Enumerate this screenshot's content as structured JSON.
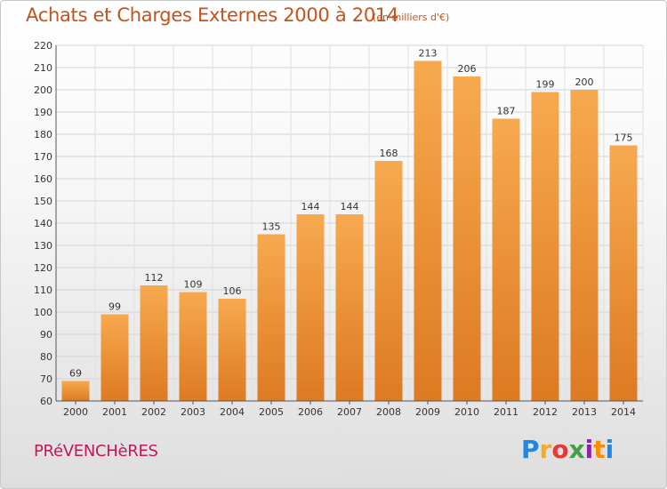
{
  "header": {
    "title": "Achats et Charges Externes 2000 à 2014",
    "subtitle": "(en milliers d'€)"
  },
  "footer": {
    "commune": "PRéVENCHèRES",
    "logo": [
      "P",
      "r",
      "o",
      "x",
      "i",
      "t",
      "i"
    ]
  },
  "colors": {
    "bar_top": "#f7a94f",
    "bar_bottom": "#dd7a22",
    "title": "#c8521a",
    "commune": "#c1185b"
  },
  "chart_data": {
    "type": "bar",
    "title": "Achats et Charges Externes 2000 à 2014",
    "subtitle": "(en milliers d'€)",
    "categories": [
      "2000",
      "2001",
      "2002",
      "2003",
      "2004",
      "2005",
      "2006",
      "2007",
      "2008",
      "2009",
      "2010",
      "2011",
      "2012",
      "2013",
      "2014"
    ],
    "values": [
      69,
      99,
      112,
      109,
      106,
      135,
      144,
      144,
      168,
      213,
      206,
      187,
      199,
      200,
      175
    ],
    "ylim": [
      60,
      220
    ],
    "yticks": [
      60,
      70,
      80,
      90,
      100,
      110,
      120,
      130,
      140,
      150,
      160,
      170,
      180,
      190,
      200,
      210,
      220
    ],
    "grid": true,
    "data_labels": true
  }
}
